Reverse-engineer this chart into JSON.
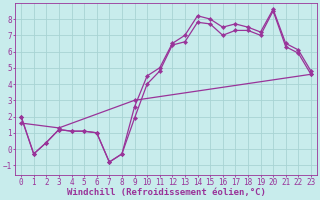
{
  "xlabel": "Windchill (Refroidissement éolien,°C)",
  "bg_color": "#c8ecec",
  "grid_color": "#a8d4d4",
  "line_color": "#993399",
  "xlim": [
    -0.5,
    23.5
  ],
  "ylim": [
    -1.6,
    9.0
  ],
  "xticks": [
    0,
    1,
    2,
    3,
    4,
    5,
    6,
    7,
    8,
    9,
    10,
    11,
    12,
    13,
    14,
    15,
    16,
    17,
    18,
    19,
    20,
    21,
    22,
    23
  ],
  "yticks": [
    -1,
    0,
    1,
    2,
    3,
    4,
    5,
    6,
    7,
    8
  ],
  "line1_x": [
    0,
    1,
    2,
    3,
    4,
    5,
    6,
    7,
    8,
    9,
    10,
    11,
    12,
    13,
    14,
    15,
    16,
    17,
    18,
    19,
    20,
    21,
    22,
    23
  ],
  "line1_y": [
    2.0,
    -0.3,
    0.4,
    1.2,
    1.1,
    1.1,
    1.0,
    -0.8,
    -0.3,
    1.9,
    4.0,
    4.8,
    6.4,
    6.6,
    7.8,
    7.7,
    7.0,
    7.3,
    7.3,
    7.0,
    8.5,
    6.3,
    5.9,
    4.6
  ],
  "line2_x": [
    0,
    1,
    2,
    3,
    4,
    5,
    6,
    7,
    8,
    9,
    10,
    11,
    12,
    13,
    14,
    15,
    16,
    17,
    18,
    19,
    20,
    21,
    22,
    23
  ],
  "line2_y": [
    2.0,
    -0.3,
    0.4,
    1.2,
    1.1,
    1.1,
    1.0,
    -0.8,
    -0.3,
    2.6,
    4.5,
    5.0,
    6.5,
    7.0,
    8.2,
    8.0,
    7.5,
    7.7,
    7.5,
    7.2,
    8.6,
    6.5,
    6.1,
    4.8
  ],
  "line3_x": [
    0,
    3,
    9,
    23
  ],
  "line3_y": [
    1.6,
    1.3,
    3.0,
    4.6
  ],
  "font_size": 6.5,
  "tick_font_size": 5.5
}
